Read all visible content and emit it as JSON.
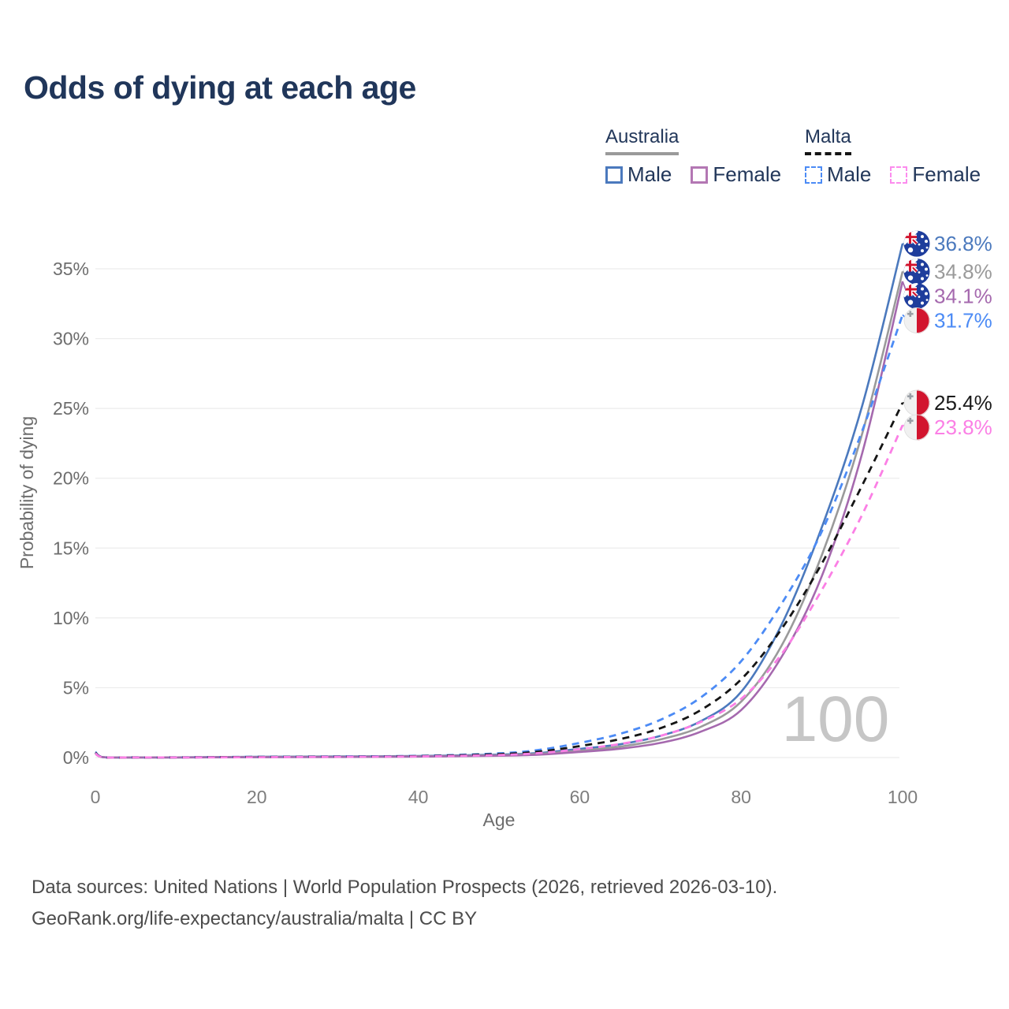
{
  "title": "Odds of dying at each age",
  "legend": {
    "groups": [
      {
        "country": "Australia",
        "line_style": "solid",
        "underline_color": "#9a9a9a",
        "items": [
          {
            "label": "Male",
            "color": "#4b79bd",
            "dashed": false
          },
          {
            "label": "Female",
            "color": "#b377b3",
            "dashed": false
          }
        ]
      },
      {
        "country": "Malta",
        "line_style": "dashed",
        "underline_color": "#151515",
        "items": [
          {
            "label": "Male",
            "color": "#4c8bf5",
            "dashed": true
          },
          {
            "label": "Female",
            "color": "#fc8cee",
            "dashed": true
          }
        ]
      }
    ]
  },
  "chart_data": {
    "type": "line",
    "title": "Odds of dying at each age",
    "xlabel": "Age",
    "ylabel": "Probability of dying",
    "xlim": [
      0,
      100
    ],
    "ylim": [
      0,
      37.9
    ],
    "x_ticks": [
      0,
      20,
      40,
      60,
      80,
      100
    ],
    "y_tick_values": [
      0,
      5,
      10,
      15,
      20,
      25,
      30,
      35
    ],
    "y_tick_labels": [
      "0%",
      "5%",
      "10%",
      "15%",
      "20%",
      "25%",
      "30%",
      "35%"
    ],
    "grid": "horizontal-only",
    "legend_position": "top-right",
    "watermark": "100",
    "ages": [
      0,
      1,
      5,
      10,
      20,
      30,
      40,
      50,
      55,
      60,
      65,
      70,
      75,
      80,
      85,
      90,
      95,
      100
    ],
    "series": [
      {
        "name": "Australia Male",
        "country": "australia",
        "sex": "male",
        "color": "#4b79bd",
        "dashed": false,
        "flag": "au",
        "end_label": "36.8%",
        "end_value": 36.8,
        "values": [
          0.35,
          0.03,
          0.01,
          0.01,
          0.05,
          0.08,
          0.11,
          0.21,
          0.33,
          0.62,
          0.95,
          1.55,
          2.6,
          4.7,
          9.5,
          16.5,
          25.2,
          36.8
        ]
      },
      {
        "name": "Australia Both sexes",
        "country": "australia",
        "sex": "both",
        "color": "#9a9a9a",
        "dashed": false,
        "flag": "au",
        "end_label": "34.8%",
        "end_value": 34.8,
        "values": [
          0.3,
          0.025,
          0.01,
          0.01,
          0.04,
          0.06,
          0.09,
          0.17,
          0.27,
          0.5,
          0.78,
          1.3,
          2.2,
          4.0,
          8.0,
          14.5,
          23.2,
          34.8
        ]
      },
      {
        "name": "Australia Female",
        "country": "australia",
        "sex": "female",
        "color": "#a569ae",
        "dashed": false,
        "flag": "au",
        "end_label": "34.1%",
        "end_value": 34.1,
        "values": [
          0.27,
          0.02,
          0.008,
          0.008,
          0.025,
          0.04,
          0.07,
          0.13,
          0.21,
          0.4,
          0.63,
          1.05,
          1.85,
          3.4,
          7.2,
          13.0,
          21.8,
          34.1
        ]
      },
      {
        "name": "Malta Male",
        "country": "malta",
        "sex": "male",
        "color": "#4c8bf5",
        "dashed": true,
        "flag": "mt",
        "end_label": "31.7%",
        "end_value": 31.7,
        "values": [
          0.4,
          0.03,
          0.01,
          0.01,
          0.05,
          0.08,
          0.12,
          0.3,
          0.55,
          1.05,
          1.7,
          2.7,
          4.3,
          6.9,
          11.0,
          16.2,
          23.4,
          31.7
        ]
      },
      {
        "name": "Malta Both sexes",
        "country": "malta",
        "sex": "both",
        "color": "#151515",
        "dashed": true,
        "flag": "mt",
        "end_label": "25.4%",
        "end_value": 25.4,
        "values": [
          0.35,
          0.025,
          0.01,
          0.01,
          0.04,
          0.06,
          0.1,
          0.24,
          0.43,
          0.82,
          1.32,
          2.1,
          3.4,
          5.6,
          9.2,
          13.9,
          19.5,
          25.4
        ]
      },
      {
        "name": "Malta Female",
        "country": "malta",
        "sex": "female",
        "color": "#fb7fe5",
        "dashed": true,
        "flag": "mt",
        "end_label": "23.8%",
        "end_value": 23.8,
        "values": [
          0.3,
          0.02,
          0.008,
          0.008,
          0.025,
          0.05,
          0.08,
          0.18,
          0.32,
          0.6,
          0.97,
          1.55,
          2.55,
          4.2,
          7.4,
          12.0,
          17.4,
          23.8
        ]
      }
    ]
  },
  "footer": {
    "line1": "Data sources: United Nations | World Population Prospects (2026, retrieved 2026-03-10).",
    "line2": "GeoRank.org/life-expectancy/australia/malta | CC BY"
  }
}
